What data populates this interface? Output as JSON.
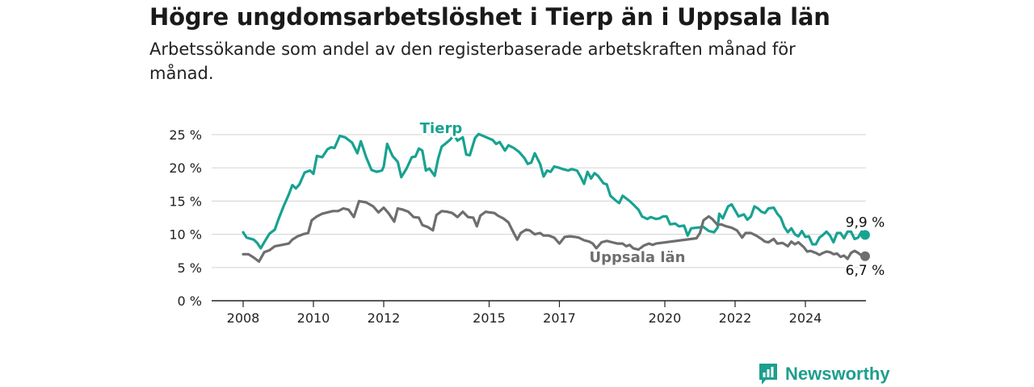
{
  "title": "Högre ungdomsarbetslöshet i Tierp än i Uppsala län",
  "subtitle": "Arbetssökande som andel av den registerbaserade arbetskraften månad för månad.",
  "brand": "Newsworthy",
  "colors": {
    "tierp": "#18a291",
    "lan": "#6e6e70",
    "grid": "#d9d9d9",
    "axis": "#222222"
  },
  "chart_data": {
    "type": "line",
    "title": "Högre ungdomsarbetslöshet i Tierp än i Uppsala län",
    "xlabel": "",
    "ylabel": "",
    "x_ticks": [
      "2008",
      "2010",
      "2012",
      "2015",
      "2017",
      "2020",
      "2022",
      "2024"
    ],
    "y_ticks": [
      "0 %",
      "5 %",
      "10 %",
      "15 %",
      "20 %",
      "25 %"
    ],
    "ylim": [
      0,
      25
    ],
    "xlim": [
      2007.6,
      2025.7
    ],
    "grid": true,
    "end_labels": {
      "tierp": "9,9 %",
      "lan": "6,7 %"
    },
    "series": [
      {
        "key": "tierp",
        "name": "Tierp",
        "points": [
          [
            2008.0,
            10.3
          ],
          [
            2008.1,
            9.5
          ],
          [
            2008.3,
            9.2
          ],
          [
            2008.4,
            8.7
          ],
          [
            2008.5,
            7.9
          ],
          [
            2008.6,
            8.8
          ],
          [
            2008.75,
            10.1
          ],
          [
            2008.9,
            10.7
          ],
          [
            2009.0,
            12.2
          ],
          [
            2009.15,
            14.2
          ],
          [
            2009.3,
            16.0
          ],
          [
            2009.4,
            17.4
          ],
          [
            2009.5,
            16.9
          ],
          [
            2009.6,
            17.5
          ],
          [
            2009.75,
            19.3
          ],
          [
            2009.9,
            19.6
          ],
          [
            2010.0,
            19.1
          ],
          [
            2010.1,
            21.8
          ],
          [
            2010.25,
            21.6
          ],
          [
            2010.4,
            22.8
          ],
          [
            2010.5,
            23.1
          ],
          [
            2010.6,
            23.0
          ],
          [
            2010.75,
            24.8
          ],
          [
            2010.9,
            24.6
          ],
          [
            2011.0,
            24.2
          ],
          [
            2011.1,
            23.8
          ],
          [
            2011.25,
            22.2
          ],
          [
            2011.35,
            24.0
          ],
          [
            2011.5,
            21.6
          ],
          [
            2011.65,
            19.7
          ],
          [
            2011.8,
            19.4
          ],
          [
            2011.95,
            19.6
          ],
          [
            2012.0,
            20.2
          ],
          [
            2012.1,
            23.6
          ],
          [
            2012.25,
            21.8
          ],
          [
            2012.4,
            20.9
          ],
          [
            2012.5,
            18.6
          ],
          [
            2012.65,
            19.9
          ],
          [
            2012.8,
            21.6
          ],
          [
            2012.9,
            21.7
          ],
          [
            2013.0,
            22.9
          ],
          [
            2013.1,
            22.6
          ],
          [
            2013.2,
            19.6
          ],
          [
            2013.3,
            19.9
          ],
          [
            2013.45,
            18.8
          ],
          [
            2013.55,
            21.4
          ],
          [
            2013.65,
            23.2
          ],
          [
            2013.75,
            23.6
          ],
          [
            2013.9,
            24.3
          ],
          [
            2014.0,
            25.0
          ],
          [
            2014.1,
            24.1
          ],
          [
            2014.25,
            24.6
          ],
          [
            2014.35,
            22.0
          ],
          [
            2014.45,
            21.9
          ],
          [
            2014.6,
            24.5
          ],
          [
            2014.7,
            25.1
          ],
          [
            2015.1,
            24.2
          ],
          [
            2015.2,
            23.6
          ],
          [
            2015.3,
            23.9
          ],
          [
            2015.45,
            22.6
          ],
          [
            2015.55,
            23.4
          ],
          [
            2015.7,
            23.0
          ],
          [
            2015.85,
            22.4
          ],
          [
            2016.0,
            21.5
          ],
          [
            2016.1,
            20.6
          ],
          [
            2016.2,
            20.8
          ],
          [
            2016.3,
            22.2
          ],
          [
            2016.45,
            20.6
          ],
          [
            2016.55,
            18.7
          ],
          [
            2016.65,
            19.6
          ],
          [
            2016.75,
            19.4
          ],
          [
            2016.85,
            20.2
          ],
          [
            2017.0,
            20.0
          ],
          [
            2017.1,
            19.8
          ],
          [
            2017.25,
            19.6
          ],
          [
            2017.35,
            19.8
          ],
          [
            2017.5,
            19.6
          ],
          [
            2017.6,
            18.7
          ],
          [
            2017.7,
            17.6
          ],
          [
            2017.8,
            19.4
          ],
          [
            2017.9,
            18.4
          ],
          [
            2018.0,
            19.2
          ],
          [
            2018.1,
            18.8
          ],
          [
            2018.25,
            17.7
          ],
          [
            2018.35,
            17.5
          ],
          [
            2018.45,
            15.8
          ],
          [
            2018.6,
            15.1
          ],
          [
            2018.7,
            14.7
          ],
          [
            2018.8,
            15.8
          ],
          [
            2018.9,
            15.4
          ],
          [
            2019.0,
            15.0
          ],
          [
            2019.1,
            14.5
          ],
          [
            2019.25,
            13.7
          ],
          [
            2019.35,
            12.7
          ],
          [
            2019.5,
            12.3
          ],
          [
            2019.6,
            12.6
          ],
          [
            2019.75,
            12.3
          ],
          [
            2019.85,
            12.4
          ],
          [
            2019.95,
            12.7
          ],
          [
            2020.05,
            12.7
          ],
          [
            2020.15,
            11.5
          ],
          [
            2020.3,
            11.6
          ],
          [
            2020.4,
            11.2
          ],
          [
            2020.55,
            11.3
          ],
          [
            2020.65,
            9.8
          ],
          [
            2020.75,
            10.9
          ],
          [
            2021.1,
            11.1
          ],
          [
            2021.25,
            10.5
          ],
          [
            2021.4,
            10.3
          ],
          [
            2021.5,
            11.0
          ],
          [
            2021.55,
            13.1
          ],
          [
            2021.65,
            12.4
          ],
          [
            2021.8,
            14.2
          ],
          [
            2021.9,
            14.5
          ],
          [
            2022.0,
            13.6
          ],
          [
            2022.1,
            12.7
          ],
          [
            2022.25,
            13.0
          ],
          [
            2022.35,
            12.2
          ],
          [
            2022.45,
            12.7
          ],
          [
            2022.55,
            14.2
          ],
          [
            2022.65,
            13.9
          ],
          [
            2022.75,
            13.4
          ],
          [
            2022.85,
            13.2
          ],
          [
            2022.95,
            13.9
          ],
          [
            2023.1,
            14.0
          ],
          [
            2023.2,
            13.1
          ],
          [
            2023.3,
            12.5
          ],
          [
            2023.4,
            11.1
          ],
          [
            2023.5,
            10.3
          ],
          [
            2023.6,
            10.9
          ],
          [
            2023.7,
            10.0
          ],
          [
            2023.8,
            9.7
          ],
          [
            2023.9,
            10.5
          ],
          [
            2024.0,
            9.6
          ],
          [
            2024.1,
            9.7
          ],
          [
            2024.2,
            8.5
          ],
          [
            2024.3,
            8.5
          ],
          [
            2024.4,
            9.5
          ],
          [
            2024.5,
            9.9
          ],
          [
            2024.6,
            10.4
          ],
          [
            2024.7,
            9.8
          ],
          [
            2024.8,
            8.8
          ],
          [
            2024.9,
            10.2
          ],
          [
            2025.0,
            10.2
          ],
          [
            2025.1,
            9.4
          ],
          [
            2025.2,
            10.4
          ],
          [
            2025.3,
            10.4
          ],
          [
            2025.4,
            9.3
          ],
          [
            2025.5,
            9.5
          ],
          [
            2025.6,
            10.4
          ],
          [
            2025.7,
            9.9
          ]
        ]
      },
      {
        "key": "lan",
        "name": "Uppsala län",
        "points": [
          [
            2008.0,
            7.0
          ],
          [
            2008.15,
            7.0
          ],
          [
            2008.3,
            6.5
          ],
          [
            2008.45,
            5.9
          ],
          [
            2008.6,
            7.3
          ],
          [
            2008.75,
            7.6
          ],
          [
            2008.9,
            8.2
          ],
          [
            2009.1,
            8.4
          ],
          [
            2009.3,
            8.6
          ],
          [
            2009.4,
            9.2
          ],
          [
            2009.55,
            9.7
          ],
          [
            2009.7,
            10.0
          ],
          [
            2009.85,
            10.2
          ],
          [
            2009.95,
            12.1
          ],
          [
            2010.1,
            12.7
          ],
          [
            2010.25,
            13.1
          ],
          [
            2010.4,
            13.3
          ],
          [
            2010.55,
            13.5
          ],
          [
            2010.7,
            13.5
          ],
          [
            2010.85,
            13.9
          ],
          [
            2011.0,
            13.7
          ],
          [
            2011.15,
            12.6
          ],
          [
            2011.3,
            15.0
          ],
          [
            2011.5,
            14.8
          ],
          [
            2011.7,
            14.2
          ],
          [
            2011.85,
            13.3
          ],
          [
            2012.0,
            14.0
          ],
          [
            2012.15,
            13.1
          ],
          [
            2012.3,
            11.9
          ],
          [
            2012.4,
            13.9
          ],
          [
            2012.55,
            13.7
          ],
          [
            2012.7,
            13.4
          ],
          [
            2012.85,
            12.6
          ],
          [
            2013.0,
            12.5
          ],
          [
            2013.1,
            11.4
          ],
          [
            2013.25,
            11.1
          ],
          [
            2013.4,
            10.6
          ],
          [
            2013.5,
            12.9
          ],
          [
            2013.65,
            13.5
          ],
          [
            2013.8,
            13.4
          ],
          [
            2013.95,
            13.2
          ],
          [
            2014.1,
            12.6
          ],
          [
            2014.25,
            13.4
          ],
          [
            2014.4,
            12.6
          ],
          [
            2014.55,
            12.5
          ],
          [
            2014.65,
            11.2
          ],
          [
            2014.75,
            12.8
          ],
          [
            2014.9,
            13.4
          ],
          [
            2015.0,
            13.3
          ],
          [
            2015.15,
            13.2
          ],
          [
            2015.25,
            12.8
          ],
          [
            2015.4,
            12.4
          ],
          [
            2015.55,
            11.8
          ],
          [
            2015.65,
            10.7
          ],
          [
            2015.8,
            9.2
          ],
          [
            2015.9,
            10.2
          ],
          [
            2016.05,
            10.7
          ],
          [
            2016.15,
            10.6
          ],
          [
            2016.3,
            10.0
          ],
          [
            2016.45,
            10.2
          ],
          [
            2016.55,
            9.8
          ],
          [
            2016.7,
            9.8
          ],
          [
            2016.85,
            9.5
          ],
          [
            2017.0,
            8.6
          ],
          [
            2017.15,
            9.6
          ],
          [
            2017.3,
            9.7
          ],
          [
            2017.45,
            9.6
          ],
          [
            2017.55,
            9.5
          ],
          [
            2017.7,
            9.1
          ],
          [
            2017.85,
            8.9
          ],
          [
            2017.95,
            8.6
          ],
          [
            2018.05,
            7.9
          ],
          [
            2018.2,
            8.8
          ],
          [
            2018.35,
            9.0
          ],
          [
            2018.5,
            8.8
          ],
          [
            2018.65,
            8.6
          ],
          [
            2018.8,
            8.6
          ],
          [
            2018.9,
            8.2
          ],
          [
            2019.0,
            8.4
          ],
          [
            2019.1,
            7.9
          ],
          [
            2019.25,
            7.7
          ],
          [
            2019.4,
            8.3
          ],
          [
            2019.55,
            8.6
          ],
          [
            2019.65,
            8.4
          ],
          [
            2019.75,
            8.6
          ],
          [
            2020.9,
            9.4
          ],
          [
            2021.0,
            10.2
          ],
          [
            2021.1,
            12.1
          ],
          [
            2021.25,
            12.7
          ],
          [
            2021.35,
            12.3
          ],
          [
            2021.5,
            11.4
          ],
          [
            2021.6,
            11.5
          ],
          [
            2021.75,
            11.2
          ],
          [
            2021.9,
            11.0
          ],
          [
            2022.05,
            10.6
          ],
          [
            2022.2,
            9.5
          ],
          [
            2022.3,
            10.2
          ],
          [
            2022.45,
            10.2
          ],
          [
            2022.6,
            9.8
          ],
          [
            2022.75,
            9.3
          ],
          [
            2022.85,
            8.9
          ],
          [
            2022.95,
            8.8
          ],
          [
            2023.1,
            9.3
          ],
          [
            2023.2,
            8.6
          ],
          [
            2023.35,
            8.7
          ],
          [
            2023.5,
            8.2
          ],
          [
            2023.6,
            8.9
          ],
          [
            2023.7,
            8.5
          ],
          [
            2023.8,
            8.8
          ],
          [
            2023.95,
            8.1
          ],
          [
            2024.05,
            7.4
          ],
          [
            2024.15,
            7.5
          ],
          [
            2024.3,
            7.2
          ],
          [
            2024.4,
            6.9
          ],
          [
            2024.5,
            7.2
          ],
          [
            2024.6,
            7.4
          ],
          [
            2024.7,
            7.3
          ],
          [
            2024.8,
            7.0
          ],
          [
            2024.9,
            7.1
          ],
          [
            2025.0,
            6.6
          ],
          [
            2025.1,
            6.8
          ],
          [
            2025.2,
            6.3
          ],
          [
            2025.3,
            7.2
          ],
          [
            2025.4,
            7.5
          ],
          [
            2025.5,
            7.2
          ],
          [
            2025.6,
            6.8
          ],
          [
            2025.7,
            6.7
          ]
        ]
      }
    ]
  }
}
